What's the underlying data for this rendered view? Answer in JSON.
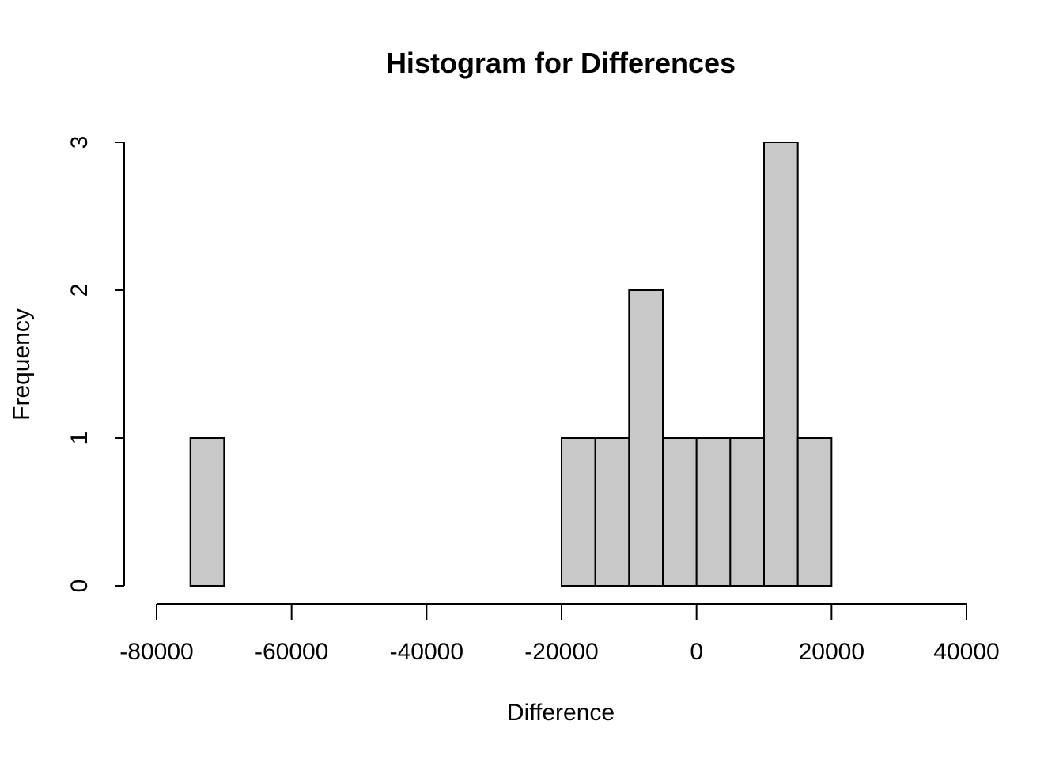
{
  "chart_data": {
    "type": "bar",
    "title": "Histogram for Differences",
    "xlabel": "Difference",
    "ylabel": "Frequency",
    "bin_width": 5000,
    "bin_starts": [
      -80000,
      -75000,
      -70000,
      -65000,
      -60000,
      -55000,
      -50000,
      -45000,
      -40000,
      -35000,
      -30000,
      -25000,
      -20000,
      -15000,
      -10000,
      -5000,
      0,
      5000,
      10000,
      15000,
      20000,
      25000,
      30000,
      35000
    ],
    "values": [
      0,
      1,
      0,
      0,
      0,
      0,
      0,
      0,
      0,
      0,
      0,
      0,
      1,
      1,
      2,
      1,
      1,
      1,
      3,
      1,
      0,
      0,
      0,
      0
    ],
    "xlim": [
      -80000,
      40000
    ],
    "ylim": [
      0,
      3
    ],
    "x_ticks": [
      -80000,
      -60000,
      -40000,
      -20000,
      0,
      20000,
      40000
    ],
    "x_tick_labels": [
      "-80000",
      "-60000",
      "-40000",
      "-20000",
      "0",
      "20000",
      "40000"
    ],
    "y_ticks": [
      0,
      1,
      2,
      3
    ],
    "y_tick_labels": [
      "0",
      "1",
      "2",
      "3"
    ],
    "bar_color": "#c8c8c8",
    "grid": false
  }
}
